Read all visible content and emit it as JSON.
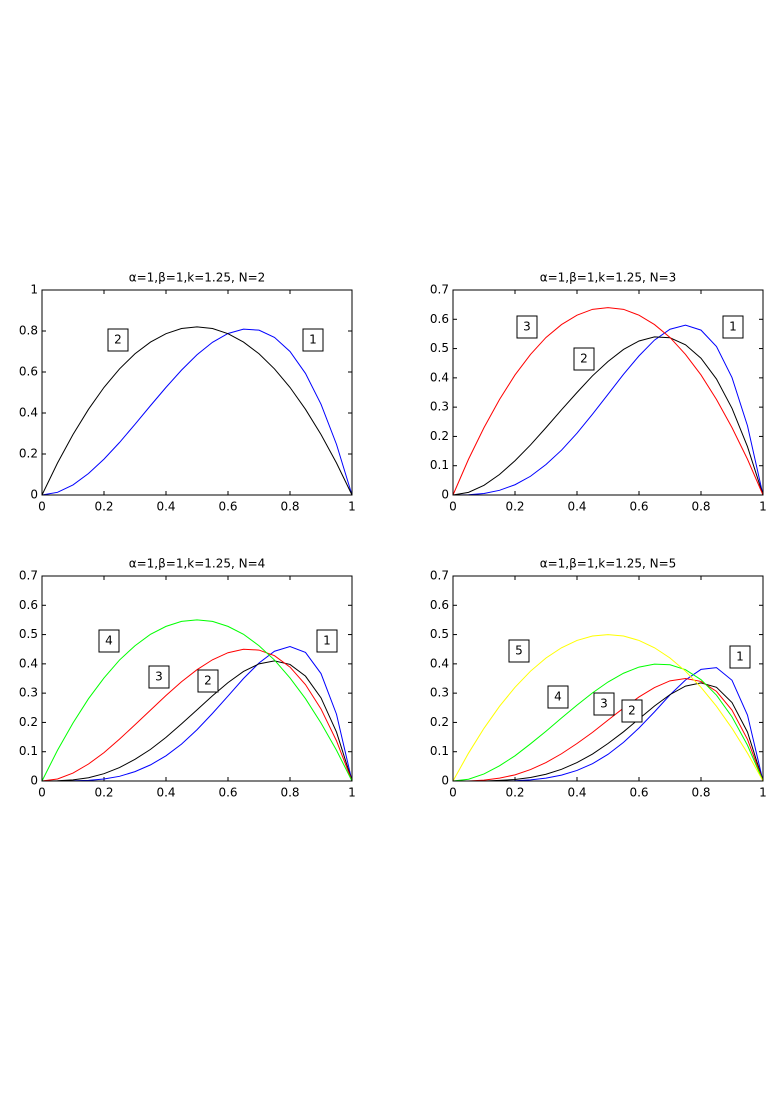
{
  "chart_data": [
    {
      "type": "line",
      "title": "α=1,β=1,k=1.25, N=2",
      "x": [
        0,
        0.05,
        0.1,
        0.15,
        0.2,
        0.25,
        0.3,
        0.35,
        0.4,
        0.45,
        0.5,
        0.55,
        0.6,
        0.65,
        0.7,
        0.75,
        0.8,
        0.85,
        0.9,
        0.95,
        1
      ],
      "series": [
        {
          "name": "1",
          "color": "#0000ff",
          "values": [
            0,
            0.013,
            0.049,
            0.105,
            0.175,
            0.256,
            0.345,
            0.436,
            0.525,
            0.609,
            0.684,
            0.745,
            0.788,
            0.809,
            0.804,
            0.769,
            0.7,
            0.593,
            0.443,
            0.247,
            0
          ]
        },
        {
          "name": "2",
          "color": "#000000",
          "values": [
            0,
            0.156,
            0.295,
            0.418,
            0.525,
            0.615,
            0.689,
            0.746,
            0.787,
            0.812,
            0.82,
            0.812,
            0.787,
            0.746,
            0.689,
            0.615,
            0.525,
            0.418,
            0.295,
            0.156,
            0
          ]
        }
      ],
      "xlim": [
        0,
        1
      ],
      "xticks": [
        0,
        0.2,
        0.4,
        0.6,
        0.8,
        1
      ],
      "ylim": [
        0,
        1
      ],
      "yticks": [
        0,
        0.2,
        0.4,
        0.6,
        0.8,
        1
      ]
    },
    {
      "type": "line",
      "title": "α=1,β=1,k=1.25, N=3",
      "x": [
        0,
        0.05,
        0.1,
        0.15,
        0.2,
        0.25,
        0.3,
        0.35,
        0.4,
        0.45,
        0.5,
        0.55,
        0.6,
        0.65,
        0.7,
        0.75,
        0.8,
        0.85,
        0.9,
        0.95,
        1
      ],
      "series": [
        {
          "name": "1",
          "color": "#0000ff",
          "values": [
            0,
            0.001,
            0.005,
            0.016,
            0.035,
            0.064,
            0.104,
            0.153,
            0.211,
            0.276,
            0.344,
            0.412,
            0.475,
            0.529,
            0.566,
            0.58,
            0.563,
            0.507,
            0.401,
            0.236,
            0
          ]
        },
        {
          "name": "2",
          "color": "#000000",
          "values": [
            0,
            0.009,
            0.033,
            0.07,
            0.117,
            0.171,
            0.23,
            0.291,
            0.35,
            0.407,
            0.456,
            0.497,
            0.526,
            0.54,
            0.537,
            0.513,
            0.467,
            0.396,
            0.296,
            0.165,
            0
          ]
        },
        {
          "name": "3",
          "color": "#ff0000",
          "values": [
            0,
            0.122,
            0.23,
            0.326,
            0.41,
            0.48,
            0.538,
            0.582,
            0.614,
            0.634,
            0.64,
            0.634,
            0.614,
            0.582,
            0.538,
            0.48,
            0.41,
            0.326,
            0.23,
            0.122,
            0
          ]
        }
      ],
      "xlim": [
        0,
        1
      ],
      "xticks": [
        0,
        0.2,
        0.4,
        0.6,
        0.8,
        1
      ],
      "ylim": [
        0,
        0.7
      ],
      "yticks": [
        0,
        0.1,
        0.2,
        0.3,
        0.4,
        0.5,
        0.6,
        0.7
      ]
    },
    {
      "type": "line",
      "title": "α=1,β=1,k=1.25, N=4",
      "x": [
        0,
        0.05,
        0.1,
        0.15,
        0.2,
        0.25,
        0.3,
        0.35,
        0.4,
        0.45,
        0.5,
        0.55,
        0.6,
        0.65,
        0.7,
        0.75,
        0.8,
        0.85,
        0.9,
        0.95,
        1
      ],
      "series": [
        {
          "name": "1",
          "color": "#0000ff",
          "values": [
            0,
            0,
            0.001,
            0.002,
            0.007,
            0.016,
            0.032,
            0.055,
            0.086,
            0.126,
            0.175,
            0.231,
            0.29,
            0.35,
            0.403,
            0.443,
            0.459,
            0.439,
            0.367,
            0.228,
            0
          ]
        },
        {
          "name": "2",
          "color": "#000000",
          "values": [
            0,
            0.001,
            0.004,
            0.011,
            0.025,
            0.046,
            0.074,
            0.108,
            0.149,
            0.195,
            0.243,
            0.291,
            0.336,
            0.374,
            0.4,
            0.41,
            0.398,
            0.358,
            0.284,
            0.167,
            0
          ]
        },
        {
          "name": "3",
          "color": "#ff0000",
          "values": [
            0,
            0.007,
            0.027,
            0.058,
            0.097,
            0.143,
            0.192,
            0.242,
            0.292,
            0.339,
            0.38,
            0.414,
            0.438,
            0.45,
            0.447,
            0.428,
            0.389,
            0.329,
            0.246,
            0.137,
            0
          ]
        },
        {
          "name": "4",
          "color": "#00ff00",
          "values": [
            0,
            0.105,
            0.198,
            0.281,
            0.352,
            0.413,
            0.462,
            0.501,
            0.528,
            0.545,
            0.55,
            0.545,
            0.528,
            0.501,
            0.462,
            0.413,
            0.352,
            0.281,
            0.198,
            0.105,
            0
          ]
        }
      ],
      "xlim": [
        0,
        1
      ],
      "xticks": [
        0,
        0.2,
        0.4,
        0.6,
        0.8,
        1
      ],
      "ylim": [
        0,
        0.7
      ],
      "yticks": [
        0,
        0.1,
        0.2,
        0.3,
        0.4,
        0.5,
        0.6,
        0.7
      ]
    },
    {
      "type": "line",
      "title": "α=1,β=1,k=1.25, N=5",
      "x": [
        0,
        0.05,
        0.1,
        0.15,
        0.2,
        0.25,
        0.3,
        0.35,
        0.4,
        0.45,
        0.5,
        0.55,
        0.6,
        0.65,
        0.7,
        0.75,
        0.8,
        0.85,
        0.9,
        0.95,
        1
      ],
      "series": [
        {
          "name": "1",
          "color": "#0000ff",
          "values": [
            0,
            0,
            0,
            0,
            0.001,
            0.004,
            0.01,
            0.02,
            0.036,
            0.059,
            0.091,
            0.132,
            0.181,
            0.236,
            0.294,
            0.345,
            0.381,
            0.387,
            0.344,
            0.225,
            0
          ]
        },
        {
          "name": "2",
          "color": "#000000",
          "values": [
            0,
            0,
            0,
            0.002,
            0.005,
            0.012,
            0.023,
            0.04,
            0.063,
            0.092,
            0.128,
            0.168,
            0.212,
            0.256,
            0.295,
            0.324,
            0.335,
            0.32,
            0.268,
            0.167,
            0
          ]
        },
        {
          "name": "3",
          "color": "#ff0000",
          "values": [
            0,
            0,
            0.003,
            0.01,
            0.021,
            0.039,
            0.063,
            0.093,
            0.128,
            0.166,
            0.208,
            0.249,
            0.287,
            0.319,
            0.342,
            0.35,
            0.34,
            0.306,
            0.242,
            0.142,
            0
          ]
        },
        {
          "name": "4",
          "color": "#00ff00",
          "values": [
            0,
            0.006,
            0.024,
            0.052,
            0.086,
            0.127,
            0.17,
            0.215,
            0.259,
            0.301,
            0.338,
            0.368,
            0.389,
            0.399,
            0.397,
            0.38,
            0.346,
            0.293,
            0.219,
            0.122,
            0
          ]
        },
        {
          "name": "5",
          "color": "#ffff00",
          "values": [
            0,
            0.095,
            0.18,
            0.255,
            0.32,
            0.375,
            0.42,
            0.455,
            0.48,
            0.495,
            0.5,
            0.495,
            0.48,
            0.455,
            0.42,
            0.375,
            0.32,
            0.255,
            0.18,
            0.095,
            0
          ]
        }
      ],
      "xlim": [
        0,
        1
      ],
      "xticks": [
        0,
        0.2,
        0.4,
        0.6,
        0.8,
        1
      ],
      "ylim": [
        0,
        0.7
      ],
      "yticks": [
        0,
        0.1,
        0.2,
        0.3,
        0.4,
        0.5,
        0.6,
        0.7
      ]
    }
  ]
}
